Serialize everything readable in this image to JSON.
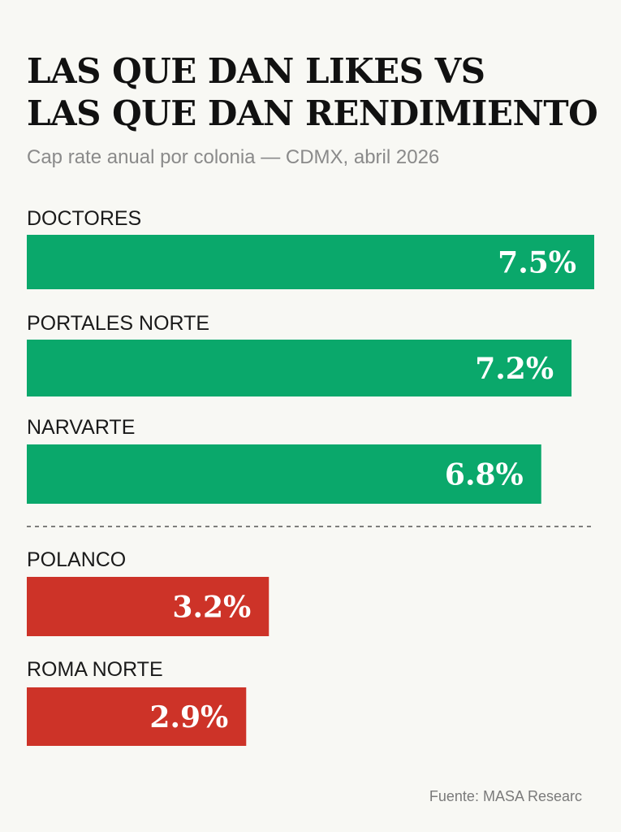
{
  "chart_data": {
    "type": "bar",
    "orientation": "horizontal",
    "title_lines": [
      "LAS QUE DAN LIKES VS",
      "LAS QUE DAN RENDIMIENTO"
    ],
    "subtitle": "Cap rate anual por colonia — CDMX, abril 2026",
    "categories": [
      "DOCTORES",
      "PORTALES NORTE",
      "NARVARTE",
      "POLANCO",
      "ROMA NORTE"
    ],
    "values": [
      7.5,
      7.2,
      6.8,
      3.2,
      2.9
    ],
    "value_labels": [
      "7.5%",
      "7.2%",
      "6.8%",
      "3.2%",
      "2.9%"
    ],
    "groups": [
      "high",
      "high",
      "high",
      "low",
      "low"
    ],
    "xlim": [
      0,
      7.5
    ],
    "grid": false,
    "legend": "none",
    "colors": {
      "high": "#0aa86b",
      "low": "#cd3328"
    },
    "source": "Fuente: MASA Researc"
  }
}
